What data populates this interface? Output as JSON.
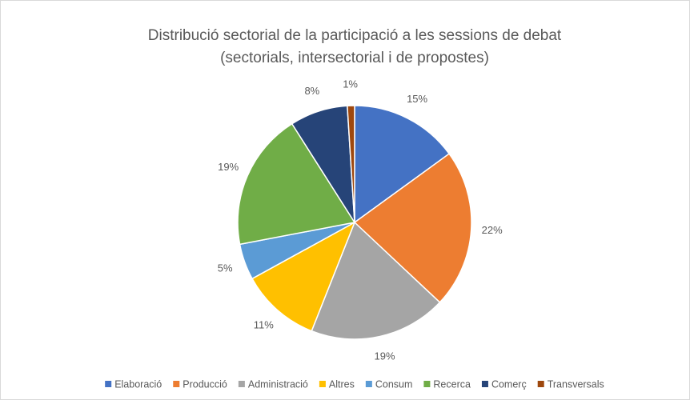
{
  "chart_data": {
    "type": "pie",
    "title": [
      "Distribució sectorial de la participació a les sessions de debat",
      "(sectorials, intersectorial i de propostes)"
    ],
    "categories": [
      "Elaboració",
      "Producció",
      "Administració",
      "Altres",
      "Consum",
      "Recerca",
      "Comerç",
      "Transversals"
    ],
    "values": [
      15,
      22,
      19,
      11,
      5,
      19,
      8,
      1
    ],
    "value_labels": [
      "15%",
      "22%",
      "19%",
      "11%",
      "5%",
      "19%",
      "8%",
      "1%"
    ],
    "colors": [
      "#4472c4",
      "#ed7d31",
      "#a5a5a5",
      "#ffc000",
      "#5b9bd5",
      "#70ad47",
      "#264478",
      "#9e480e"
    ],
    "legend": "bottom"
  }
}
